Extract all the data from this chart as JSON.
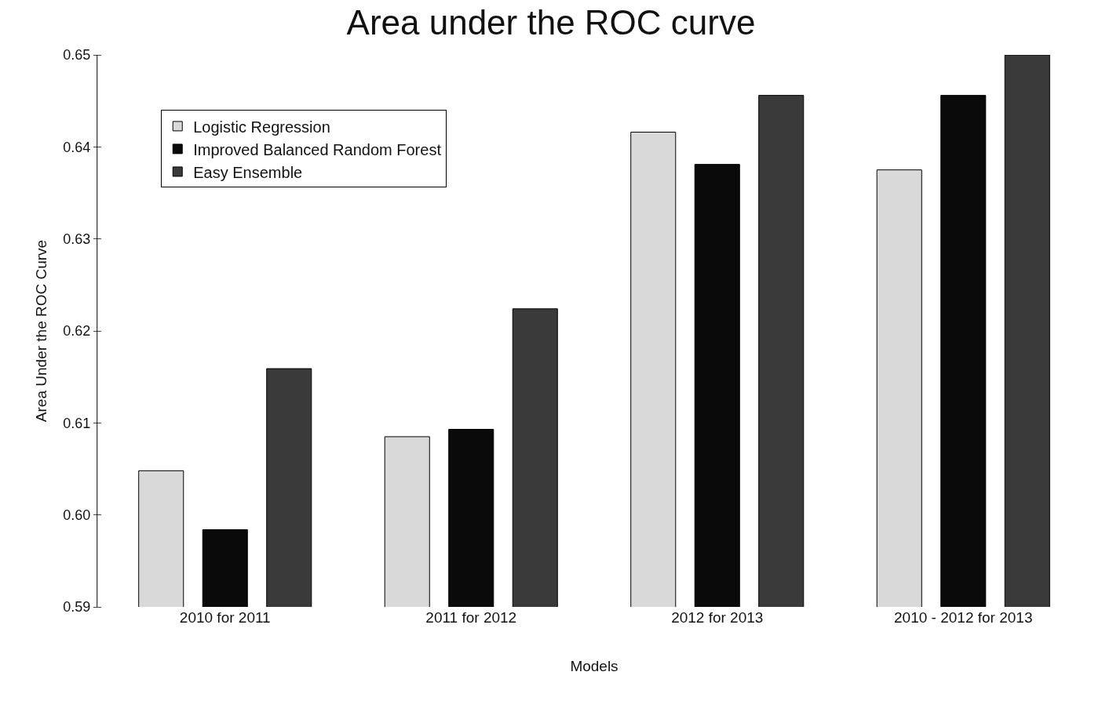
{
  "chart_data": {
    "type": "bar",
    "title": "Area under the ROC curve",
    "xlabel": "Models",
    "ylabel": "Area Under the ROC Curve",
    "categories": [
      "2010 for 2011",
      "2011 for 2012",
      "2012 for 2013",
      "2010 - 2012 for 2013"
    ],
    "series": [
      {
        "name": "Logistic Regression",
        "color": "#d9d9d9",
        "values": [
          0.6048,
          0.6085,
          0.6416,
          0.6375
        ]
      },
      {
        "name": "Improved Balanced Random Forest",
        "color": "#0a0a0a",
        "values": [
          0.5984,
          0.6093,
          0.6381,
          0.6456
        ]
      },
      {
        "name": "Easy Ensemble",
        "color": "#3a3a3a",
        "values": [
          0.6159,
          0.6224,
          0.6456,
          0.65
        ]
      }
    ],
    "ylim": [
      0.59,
      0.65
    ],
    "yticks": [
      0.59,
      {
        "value": 0.6,
        "label": "0.60"
      },
      0.61,
      0.62,
      0.63,
      0.64,
      0.65
    ],
    "grid": false,
    "legend": "top left"
  }
}
